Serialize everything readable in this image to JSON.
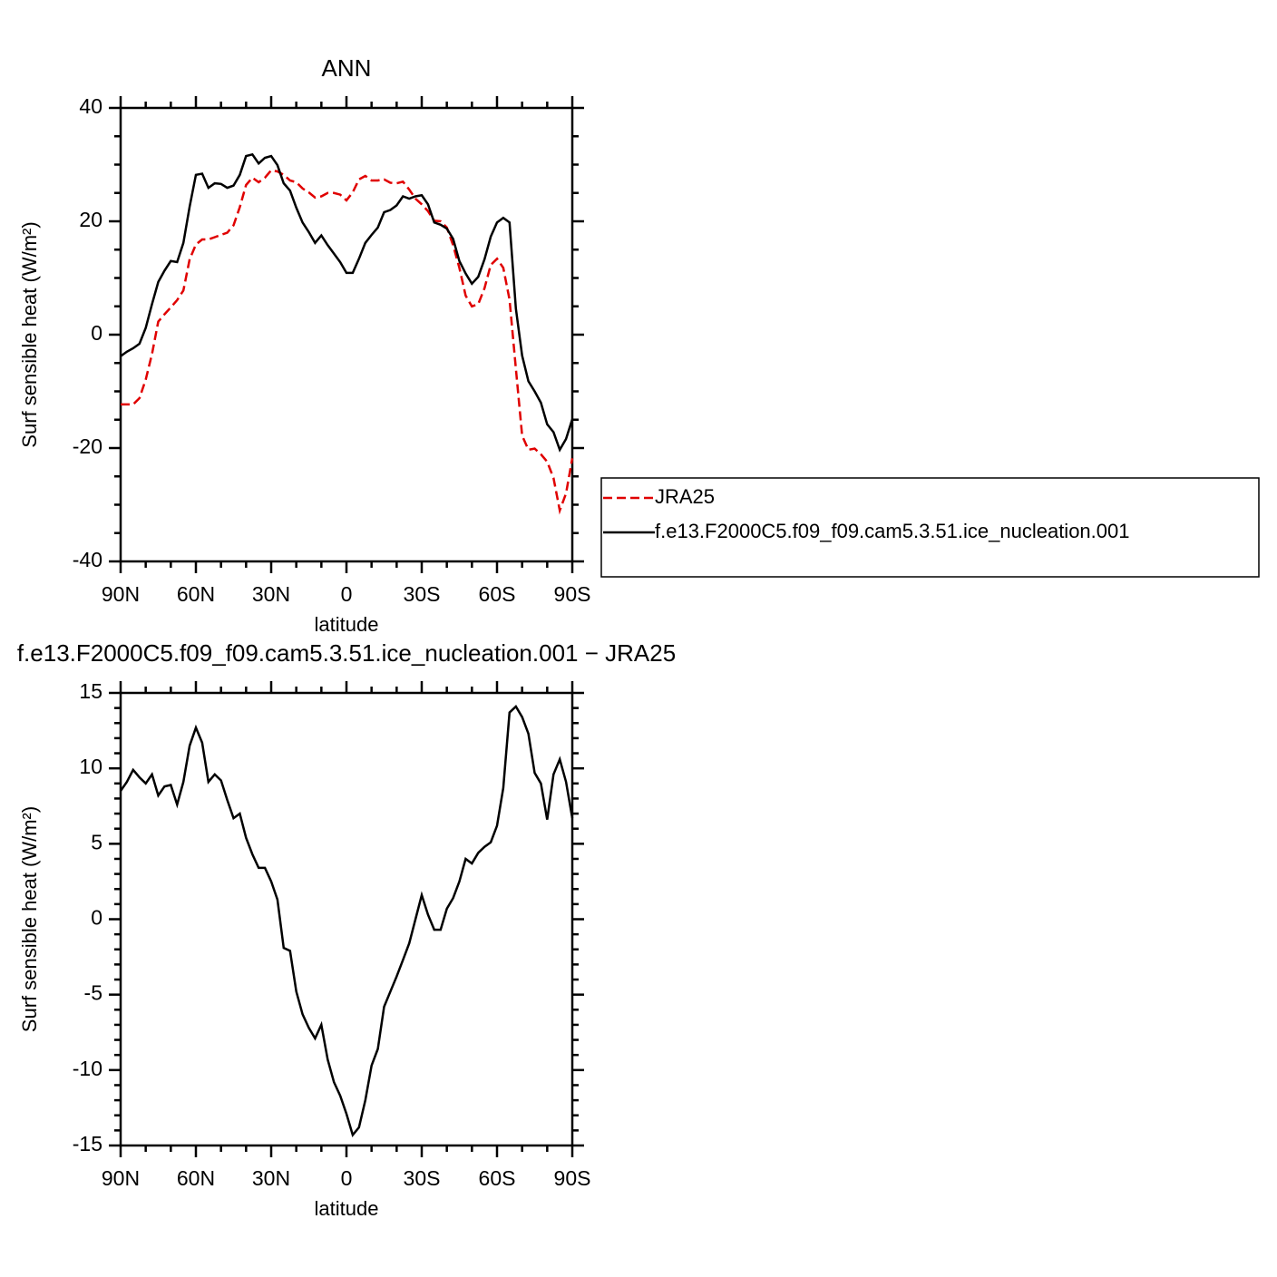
{
  "chart_data": [
    {
      "type": "line",
      "title": "ANN",
      "xlabel": "latitude",
      "ylabel": "Surf sensible heat (W/m²)",
      "x": [
        90,
        87.5,
        85,
        82.5,
        80,
        77.5,
        75,
        72.5,
        70,
        67.5,
        65,
        62.5,
        60,
        57.5,
        55,
        52.5,
        50,
        47.5,
        45,
        42.5,
        40,
        37.5,
        35,
        32.5,
        30,
        27.5,
        25,
        22.5,
        20,
        17.5,
        15,
        12.5,
        10,
        7.5,
        5,
        2.5,
        0,
        -2.5,
        -5,
        -7.5,
        -10,
        -12.5,
        -15,
        -17.5,
        -20,
        -22.5,
        -25,
        -27.5,
        -30,
        -32.5,
        -35,
        -37.5,
        -40,
        -42.5,
        -45,
        -47.5,
        -50,
        -52.5,
        -55,
        -57.5,
        -60,
        -62.5,
        -65,
        -67.5,
        -70,
        -72.5,
        -75,
        -77.5,
        -80,
        -82.5,
        -85,
        -87.5,
        -90
      ],
      "series": [
        {
          "name": "JRA25",
          "color": "#e00000",
          "linestyle": "dashed",
          "values": [
            -12.3,
            -12.3,
            -12.3,
            -11.2,
            -7.9,
            -3.4,
            2.3,
            3.6,
            4.8,
            6.1,
            7.8,
            13.3,
            15.9,
            16.8,
            16.8,
            17.2,
            17.6,
            18.0,
            19.3,
            22.5,
            26.4,
            27.7,
            26.9,
            27.7,
            29.0,
            28.8,
            28.2,
            27.2,
            26.9,
            25.8,
            25.1,
            24.2,
            24.4,
            25.0,
            25.0,
            24.7,
            23.7,
            25.1,
            27.4,
            28.0,
            27.2,
            27.2,
            27.4,
            26.8,
            26.7,
            27.0,
            25.6,
            24.0,
            23.0,
            21.8,
            20.1,
            20.0,
            18.9,
            15.8,
            11.8,
            6.9,
            5.0,
            5.4,
            8.2,
            12.3,
            13.4,
            11.8,
            6.2,
            -6.0,
            -17.8,
            -20.3,
            -20.1,
            -21.1,
            -22.4,
            -25.3,
            -31.0,
            -28.0,
            -21.8
          ]
        },
        {
          "name": "f.e13.F2000C5.f09_f09.cam5.3.51.ice_nucleation.001",
          "color": "#000000",
          "linestyle": "solid",
          "values": [
            -3.8,
            -3.0,
            -2.4,
            -1.6,
            1.2,
            5.4,
            9.3,
            11.3,
            13.0,
            12.8,
            16.2,
            22.6,
            28.2,
            28.4,
            25.9,
            26.7,
            26.6,
            25.9,
            26.3,
            28.2,
            31.5,
            31.8,
            30.2,
            31.2,
            31.5,
            29.9,
            26.7,
            25.4,
            22.4,
            19.8,
            18.1,
            16.2,
            17.5,
            15.8,
            14.3,
            12.8,
            10.9,
            10.9,
            13.4,
            16.2,
            17.6,
            18.9,
            21.6,
            22.0,
            22.8,
            24.4,
            24.0,
            24.4,
            24.6,
            23.0,
            19.8,
            19.4,
            18.7,
            16.9,
            13.0,
            10.8,
            9.0,
            10.2,
            13.3,
            17.3,
            19.8,
            20.6,
            19.8,
            4.6,
            -3.7,
            -8.2,
            -10.0,
            -12.0,
            -15.8,
            -17.2,
            -20.3,
            -18.4,
            -14.9
          ]
        }
      ],
      "xlim": [
        90,
        -90
      ],
      "xticks": [
        {
          "value": 90,
          "label": "90N"
        },
        {
          "value": 60,
          "label": "60N"
        },
        {
          "value": 30,
          "label": "30N"
        },
        0,
        {
          "value": -30,
          "label": "30S"
        },
        {
          "value": -60,
          "label": "60S"
        },
        {
          "value": -90,
          "label": "90S"
        }
      ],
      "ylim": [
        -40,
        40
      ],
      "yticks": [
        -40,
        -20,
        0,
        20,
        40
      ],
      "legend": "right"
    },
    {
      "type": "line",
      "title": "f.e13.F2000C5.f09_f09.cam5.3.51.ice_nucleation.001 − JRA25",
      "xlabel": "latitude",
      "ylabel": "Surf sensible heat (W/m²)",
      "x": [
        90,
        87.5,
        85,
        82.5,
        80,
        77.5,
        75,
        72.5,
        70,
        67.5,
        65,
        62.5,
        60,
        57.5,
        55,
        52.5,
        50,
        47.5,
        45,
        42.5,
        40,
        37.5,
        35,
        32.5,
        30,
        27.5,
        25,
        22.5,
        20,
        17.5,
        15,
        12.5,
        10,
        7.5,
        5,
        2.5,
        0,
        -2.5,
        -5,
        -7.5,
        -10,
        -12.5,
        -15,
        -17.5,
        -20,
        -22.5,
        -25,
        -27.5,
        -30,
        -32.5,
        -35,
        -37.5,
        -40,
        -42.5,
        -45,
        -47.5,
        -50,
        -52.5,
        -55,
        -57.5,
        -60,
        -62.5,
        -65,
        -67.5,
        -70,
        -72.5,
        -75,
        -77.5,
        -80,
        -82.5,
        -85,
        -87.5,
        -90
      ],
      "color": "#000000",
      "values": [
        8.5,
        9.1,
        9.9,
        9.4,
        9.0,
        9.6,
        8.2,
        8.8,
        8.9,
        7.6,
        9.1,
        11.5,
        12.7,
        11.7,
        9.1,
        9.6,
        9.2,
        7.9,
        6.7,
        7.0,
        5.4,
        4.3,
        3.4,
        3.4,
        2.5,
        1.3,
        -1.9,
        -2.1,
        -4.8,
        -6.3,
        -7.2,
        -7.9,
        -7.0,
        -9.3,
        -10.8,
        -11.7,
        -12.9,
        -14.3,
        -13.8,
        -12.0,
        -9.7,
        -8.6,
        -5.8,
        -4.8,
        -3.8,
        -2.7,
        -1.6,
        0.0,
        1.6,
        0.3,
        -0.7,
        -0.7,
        0.7,
        1.4,
        2.5,
        4.0,
        3.7,
        4.4,
        4.8,
        5.1,
        6.2,
        8.7,
        13.7,
        14.1,
        13.4,
        12.3,
        9.7,
        9.0,
        6.6,
        9.6,
        10.6,
        9.1,
        6.7
      ],
      "xlim": [
        90,
        -90
      ],
      "xticks": [
        {
          "value": 90,
          "label": "90N"
        },
        {
          "value": 60,
          "label": "60N"
        },
        {
          "value": 30,
          "label": "30N"
        },
        0,
        {
          "value": -30,
          "label": "30S"
        },
        {
          "value": -60,
          "label": "60S"
        },
        {
          "value": -90,
          "label": "90S"
        }
      ],
      "ylim": [
        -15,
        15
      ],
      "yticks": [
        -15,
        -10,
        -5,
        0,
        5,
        10,
        15
      ]
    }
  ]
}
